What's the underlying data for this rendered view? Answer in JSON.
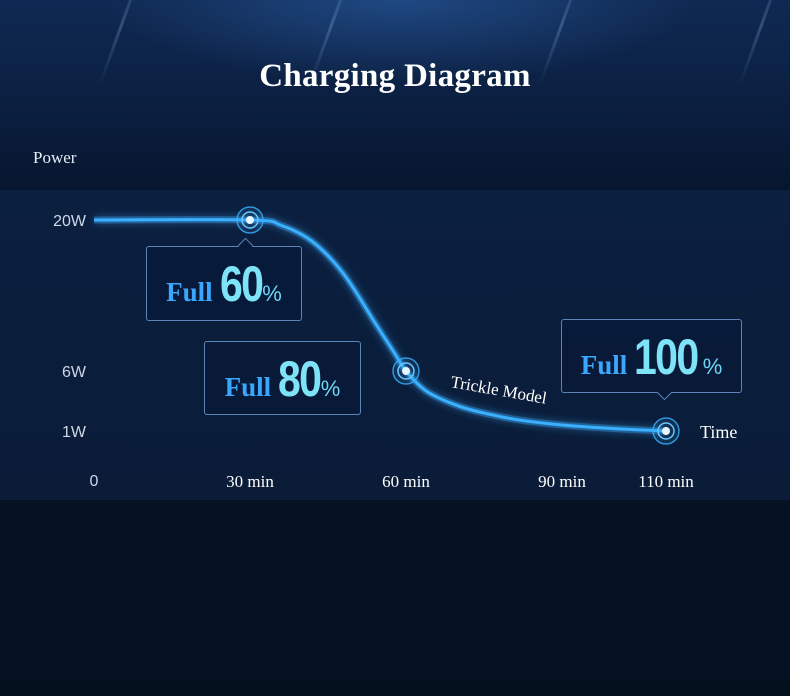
{
  "title": "Charging Diagram",
  "chart_data": {
    "type": "line",
    "ylabel": "Power",
    "xlabel": "Time",
    "x_origin_label": "0",
    "x_ticks": [
      {
        "value": 30,
        "label": "30 min"
      },
      {
        "value": 60,
        "label": "60 min"
      },
      {
        "value": 90,
        "label": "90 min"
      },
      {
        "value": 110,
        "label": "110 min"
      }
    ],
    "y_ticks": [
      {
        "value": 20,
        "label": "20W"
      },
      {
        "value": 6,
        "label": "6W"
      },
      {
        "value": 1,
        "label": "1W"
      }
    ],
    "xlim": [
      0,
      110
    ],
    "grid": true,
    "series": [
      {
        "x": [
          0,
          30,
          36,
          42,
          48,
          54,
          58,
          60,
          64,
          70,
          76,
          82,
          90,
          100,
          110
        ],
        "y": [
          20,
          20,
          19.5,
          18,
          15,
          10.5,
          7.5,
          6,
          4.3,
          3.1,
          2.4,
          1.9,
          1.5,
          1.2,
          1
        ]
      }
    ],
    "markers": [
      {
        "x": 30,
        "y": 20,
        "label": "Full 60%"
      },
      {
        "x": 60,
        "y": 6,
        "label": "Full 80%"
      },
      {
        "x": 110,
        "y": 1,
        "label": "Full 100%"
      }
    ],
    "annotations": [
      {
        "text": "Trickle Model",
        "x": 78,
        "y": 4
      }
    ],
    "color": "#3ab0ff"
  },
  "callouts": [
    {
      "word": "Full",
      "number": "60",
      "unit": "%"
    },
    {
      "word": "Full",
      "number": "80",
      "unit": "%"
    },
    {
      "word": "Full",
      "number": "100",
      "unit": "%"
    }
  ]
}
